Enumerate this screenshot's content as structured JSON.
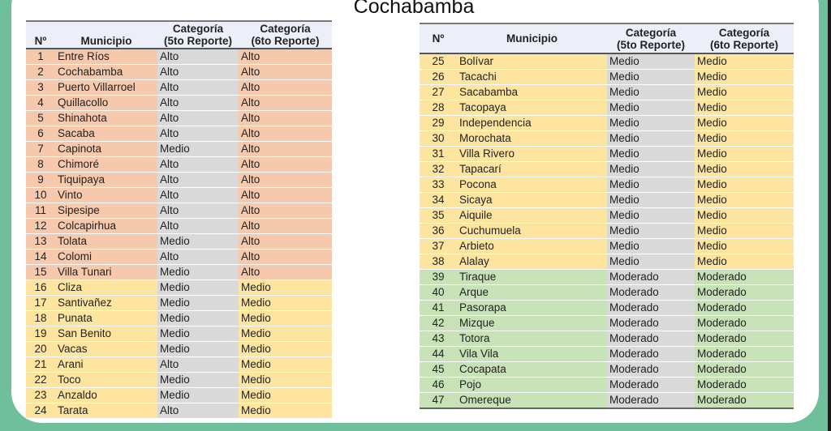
{
  "title": "Cochabamba",
  "colors": {
    "Alto": "#f7c9ac",
    "Medio": "#fde5a0",
    "Moderado": "#c8e2b8",
    "report5": "#d9d9d9",
    "frame": "#6fbf9c"
  },
  "headers": {
    "n": "Nº",
    "municipio": "Municipio",
    "cat5_line1": "Categoría",
    "cat5_line2": "(5to Reporte)",
    "cat6_line1": "Categoría",
    "cat6_line2": "(6to Reporte)"
  },
  "tables": [
    {
      "rows": [
        {
          "n": "1",
          "m": "Entre Ríos",
          "c5": "Alto",
          "c6": "Alto"
        },
        {
          "n": "2",
          "m": "Cochabamba",
          "c5": "Alto",
          "c6": "Alto"
        },
        {
          "n": "3",
          "m": "Puerto Villarroel",
          "c5": "Alto",
          "c6": "Alto"
        },
        {
          "n": "4",
          "m": "Quillacollo",
          "c5": "Alto",
          "c6": "Alto"
        },
        {
          "n": "5",
          "m": "Shinahota",
          "c5": "Alto",
          "c6": "Alto"
        },
        {
          "n": "6",
          "m": "Sacaba",
          "c5": "Alto",
          "c6": "Alto"
        },
        {
          "n": "7",
          "m": "Capinota",
          "c5": "Medio",
          "c6": "Alto"
        },
        {
          "n": "8",
          "m": "Chimoré",
          "c5": "Alto",
          "c6": "Alto"
        },
        {
          "n": "9",
          "m": "Tiquipaya",
          "c5": "Alto",
          "c6": "Alto"
        },
        {
          "n": "10",
          "m": "Vinto",
          "c5": "Alto",
          "c6": "Alto"
        },
        {
          "n": "11",
          "m": "Sipesipe",
          "c5": "Alto",
          "c6": "Alto"
        },
        {
          "n": "12",
          "m": "Colcapirhua",
          "c5": "Alto",
          "c6": "Alto"
        },
        {
          "n": "13",
          "m": "Tolata",
          "c5": "Medio",
          "c6": "Alto"
        },
        {
          "n": "14",
          "m": "Colomi",
          "c5": "Alto",
          "c6": "Alto"
        },
        {
          "n": "15",
          "m": "Villa Tunari",
          "c5": "Medio",
          "c6": "Alto"
        },
        {
          "n": "16",
          "m": "Cliza",
          "c5": "Medio",
          "c6": "Medio"
        },
        {
          "n": "17",
          "m": "Santivañez",
          "c5": "Medio",
          "c6": "Medio"
        },
        {
          "n": "18",
          "m": "Punata",
          "c5": "Medio",
          "c6": "Medio"
        },
        {
          "n": "19",
          "m": "San Benito",
          "c5": "Medio",
          "c6": "Medio"
        },
        {
          "n": "20",
          "m": "Vacas",
          "c5": "Medio",
          "c6": "Medio"
        },
        {
          "n": "21",
          "m": "Arani",
          "c5": "Alto",
          "c6": "Medio"
        },
        {
          "n": "22",
          "m": "Toco",
          "c5": "Medio",
          "c6": "Medio"
        },
        {
          "n": "23",
          "m": "Anzaldo",
          "c5": "Medio",
          "c6": "Medio"
        },
        {
          "n": "24",
          "m": "Tarata",
          "c5": "Alto",
          "c6": "Medio"
        }
      ]
    },
    {
      "rows": [
        {
          "n": "25",
          "m": "Bolívar",
          "c5": "Medio",
          "c6": "Medio"
        },
        {
          "n": "26",
          "m": "Tacachi",
          "c5": "Medio",
          "c6": "Medio"
        },
        {
          "n": "27",
          "m": "Sacabamba",
          "c5": "Medio",
          "c6": "Medio"
        },
        {
          "n": "28",
          "m": "Tacopaya",
          "c5": "Medio",
          "c6": "Medio"
        },
        {
          "n": "29",
          "m": "Independencia",
          "c5": "Medio",
          "c6": "Medio"
        },
        {
          "n": "30",
          "m": "Morochata",
          "c5": "Medio",
          "c6": "Medio"
        },
        {
          "n": "31",
          "m": "Villa Rivero",
          "c5": "Medio",
          "c6": "Medio"
        },
        {
          "n": "32",
          "m": "Tapacarí",
          "c5": "Medio",
          "c6": "Medio"
        },
        {
          "n": "33",
          "m": "Pocona",
          "c5": "Medio",
          "c6": "Medio"
        },
        {
          "n": "34",
          "m": "Sicaya",
          "c5": "Medio",
          "c6": "Medio"
        },
        {
          "n": "35",
          "m": "Aiquile",
          "c5": "Medio",
          "c6": "Medio"
        },
        {
          "n": "36",
          "m": "Cuchumuela",
          "c5": "Medio",
          "c6": "Medio"
        },
        {
          "n": "37",
          "m": "Arbieto",
          "c5": "Medio",
          "c6": "Medio"
        },
        {
          "n": "38",
          "m": "Alalay",
          "c5": "Medio",
          "c6": "Medio"
        },
        {
          "n": "39",
          "m": "Tiraque",
          "c5": "Moderado",
          "c6": "Moderado"
        },
        {
          "n": "40",
          "m": "Arque",
          "c5": "Moderado",
          "c6": "Moderado"
        },
        {
          "n": "41",
          "m": "Pasorapa",
          "c5": "Moderado",
          "c6": "Moderado"
        },
        {
          "n": "42",
          "m": "Mizque",
          "c5": "Moderado",
          "c6": "Moderado"
        },
        {
          "n": "43",
          "m": "Totora",
          "c5": "Moderado",
          "c6": "Moderado"
        },
        {
          "n": "44",
          "m": "Vila Vila",
          "c5": "Moderado",
          "c6": "Moderado"
        },
        {
          "n": "45",
          "m": "Cocapata",
          "c5": "Moderado",
          "c6": "Moderado"
        },
        {
          "n": "46",
          "m": "Pojo",
          "c5": "Moderado",
          "c6": "Moderado"
        },
        {
          "n": "47",
          "m": "Omereque",
          "c5": "Moderado",
          "c6": "Moderado"
        }
      ]
    }
  ]
}
